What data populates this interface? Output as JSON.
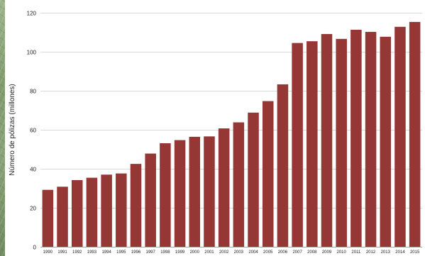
{
  "chart_data": {
    "type": "bar",
    "title": "",
    "xlabel": "",
    "ylabel": "Número de pólizas (millones)",
    "ylim": [
      0,
      120
    ],
    "yticks": [
      0,
      20,
      40,
      60,
      80,
      100,
      120
    ],
    "grid": true,
    "legend": "none",
    "colors": {
      "bar": "#953735",
      "grid": "#d9d9d9",
      "axis": "#a6a6a6",
      "text": "#222222",
      "panel": "#ffffff"
    },
    "categories": [
      "1990",
      "1991",
      "1992",
      "1993",
      "1994",
      "1995",
      "1996",
      "1997",
      "1998",
      "1999",
      "2000",
      "2001",
      "2002",
      "2003",
      "2004",
      "2005",
      "2006",
      "2007",
      "2008",
      "2009",
      "2010",
      "2011",
      "2012",
      "2013",
      "2014",
      "2015"
    ],
    "values": [
      29.2,
      30.8,
      34.2,
      35.4,
      37.0,
      37.6,
      42.5,
      47.8,
      53.1,
      54.7,
      56.4,
      56.6,
      60.7,
      63.8,
      68.8,
      74.7,
      83.3,
      104.5,
      105.4,
      109.1,
      106.6,
      111.3,
      110.2,
      107.7,
      112.8,
      115.3
    ]
  }
}
